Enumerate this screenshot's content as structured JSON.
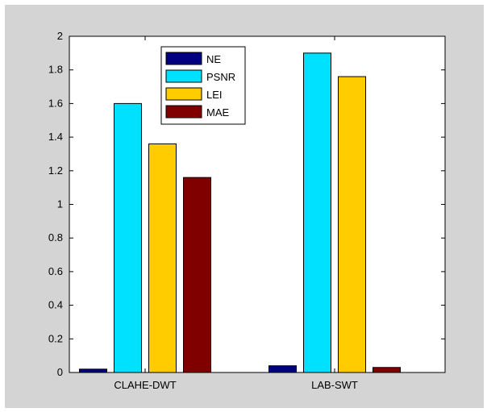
{
  "chart_data": {
    "type": "bar",
    "categories": [
      "CLAHE-DWT",
      "LAB-SWT"
    ],
    "series": [
      {
        "name": "NE",
        "color": "#000080",
        "values": [
          0.02,
          0.04
        ]
      },
      {
        "name": "PSNR",
        "color": "#00E0FF",
        "values": [
          1.6,
          1.9
        ]
      },
      {
        "name": "LEI",
        "color": "#FFCC00",
        "values": [
          1.36,
          1.76
        ]
      },
      {
        "name": "MAE",
        "color": "#800000",
        "values": [
          1.16,
          0.03
        ]
      }
    ],
    "title": "",
    "xlabel": "",
    "ylabel": "",
    "ylim": [
      0,
      2
    ],
    "yticks": [
      "0",
      "0.2",
      "0.4",
      "0.6",
      "0.8",
      "1",
      "1.2",
      "1.4",
      "1.6",
      "1.8",
      "2"
    ],
    "grid": false,
    "legend_position": "top-center",
    "figure_background": "#D4D4D4",
    "axes_background": "#FFFFFF"
  }
}
